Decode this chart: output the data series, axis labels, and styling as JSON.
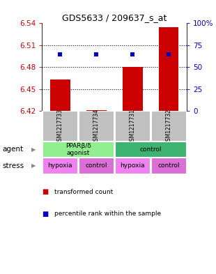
{
  "title": "GDS5633 / 209637_s_at",
  "samples": [
    "GSM1217733",
    "GSM1217734",
    "GSM1217731",
    "GSM1217732"
  ],
  "bar_values": [
    6.463,
    6.421,
    6.48,
    6.535
  ],
  "bar_base": 6.42,
  "percentile_values": [
    65,
    65,
    65,
    65
  ],
  "ylim": [
    6.42,
    6.54
  ],
  "yticks": [
    6.42,
    6.45,
    6.48,
    6.51,
    6.54
  ],
  "ytick_labels": [
    "6.42",
    "6.45",
    "6.48",
    "6.51",
    "6.54"
  ],
  "right_yticks": [
    0,
    25,
    50,
    75,
    100
  ],
  "right_ytick_labels": [
    "0",
    "25",
    "50",
    "75",
    "100%"
  ],
  "bar_color": "#cc0000",
  "percentile_color": "#0000cc",
  "agent_label_0": "PPARβ/δ\nagonist",
  "agent_label_1": "control",
  "stress_labels": [
    "hypoxia",
    "control",
    "hypoxia",
    "control"
  ],
  "agent_color_0": "#90ee90",
  "agent_color_1": "#3cb371",
  "stress_color_0": "#ee82ee",
  "stress_color_1": "#da70d6",
  "background_color": "#ffffff",
  "sample_box_color": "#c0c0c0",
  "left_label_color": "#cc0000",
  "right_label_color": "#0000cc",
  "legend_red_label": "transformed count",
  "legend_blue_label": "percentile rank within the sample",
  "agent_row_label": "agent",
  "stress_row_label": "stress",
  "dotted_lines": [
    6.45,
    6.48,
    6.51
  ]
}
